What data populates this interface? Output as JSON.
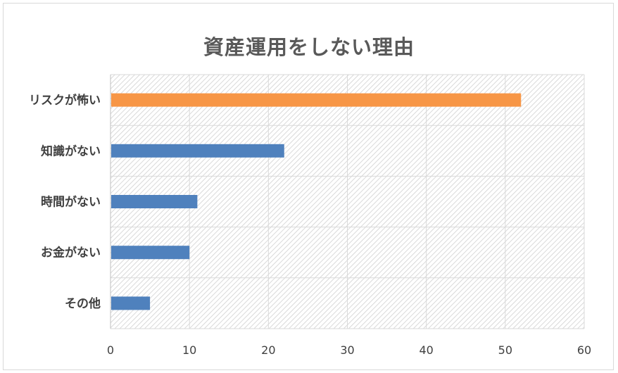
{
  "chart_data": {
    "type": "bar",
    "orientation": "horizontal",
    "title": "資産運用をしない理由",
    "categories": [
      "リスクが怖い",
      "知識がない",
      "時間がない",
      "お金がない",
      "その他"
    ],
    "values": [
      52,
      22,
      11,
      10,
      5
    ],
    "colors": [
      "#f79646",
      "#4f81bd",
      "#4f81bd",
      "#4f81bd",
      "#4f81bd"
    ],
    "xlim": [
      0,
      60
    ],
    "xticks": [
      0,
      10,
      20,
      30,
      40,
      50,
      60
    ],
    "grid": true,
    "legend": "none"
  }
}
